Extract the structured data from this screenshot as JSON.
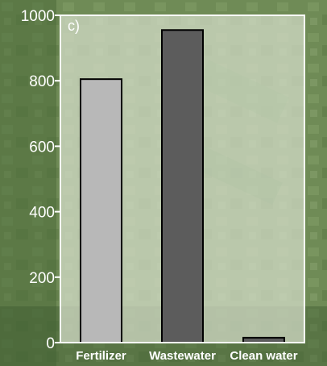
{
  "chart_data": {
    "type": "bar",
    "panel_label": "c)",
    "categories": [
      "Fertilizer",
      "Wastewater",
      "Clean water"
    ],
    "values": [
      805,
      955,
      15
    ],
    "ylim": [
      0,
      1000
    ],
    "yticks": [
      0,
      200,
      400,
      600,
      800,
      1000
    ],
    "ytick_labels": [
      "0",
      "200",
      "400",
      "600",
      "800",
      "1000"
    ],
    "bar_colors": [
      "#b8b8b8",
      "#5c5c5c",
      "#5c5c5c"
    ],
    "bar_edge_color": "#000000",
    "frame_color": "#ffffff",
    "grid": false,
    "background": "aerial photo of green fields"
  }
}
